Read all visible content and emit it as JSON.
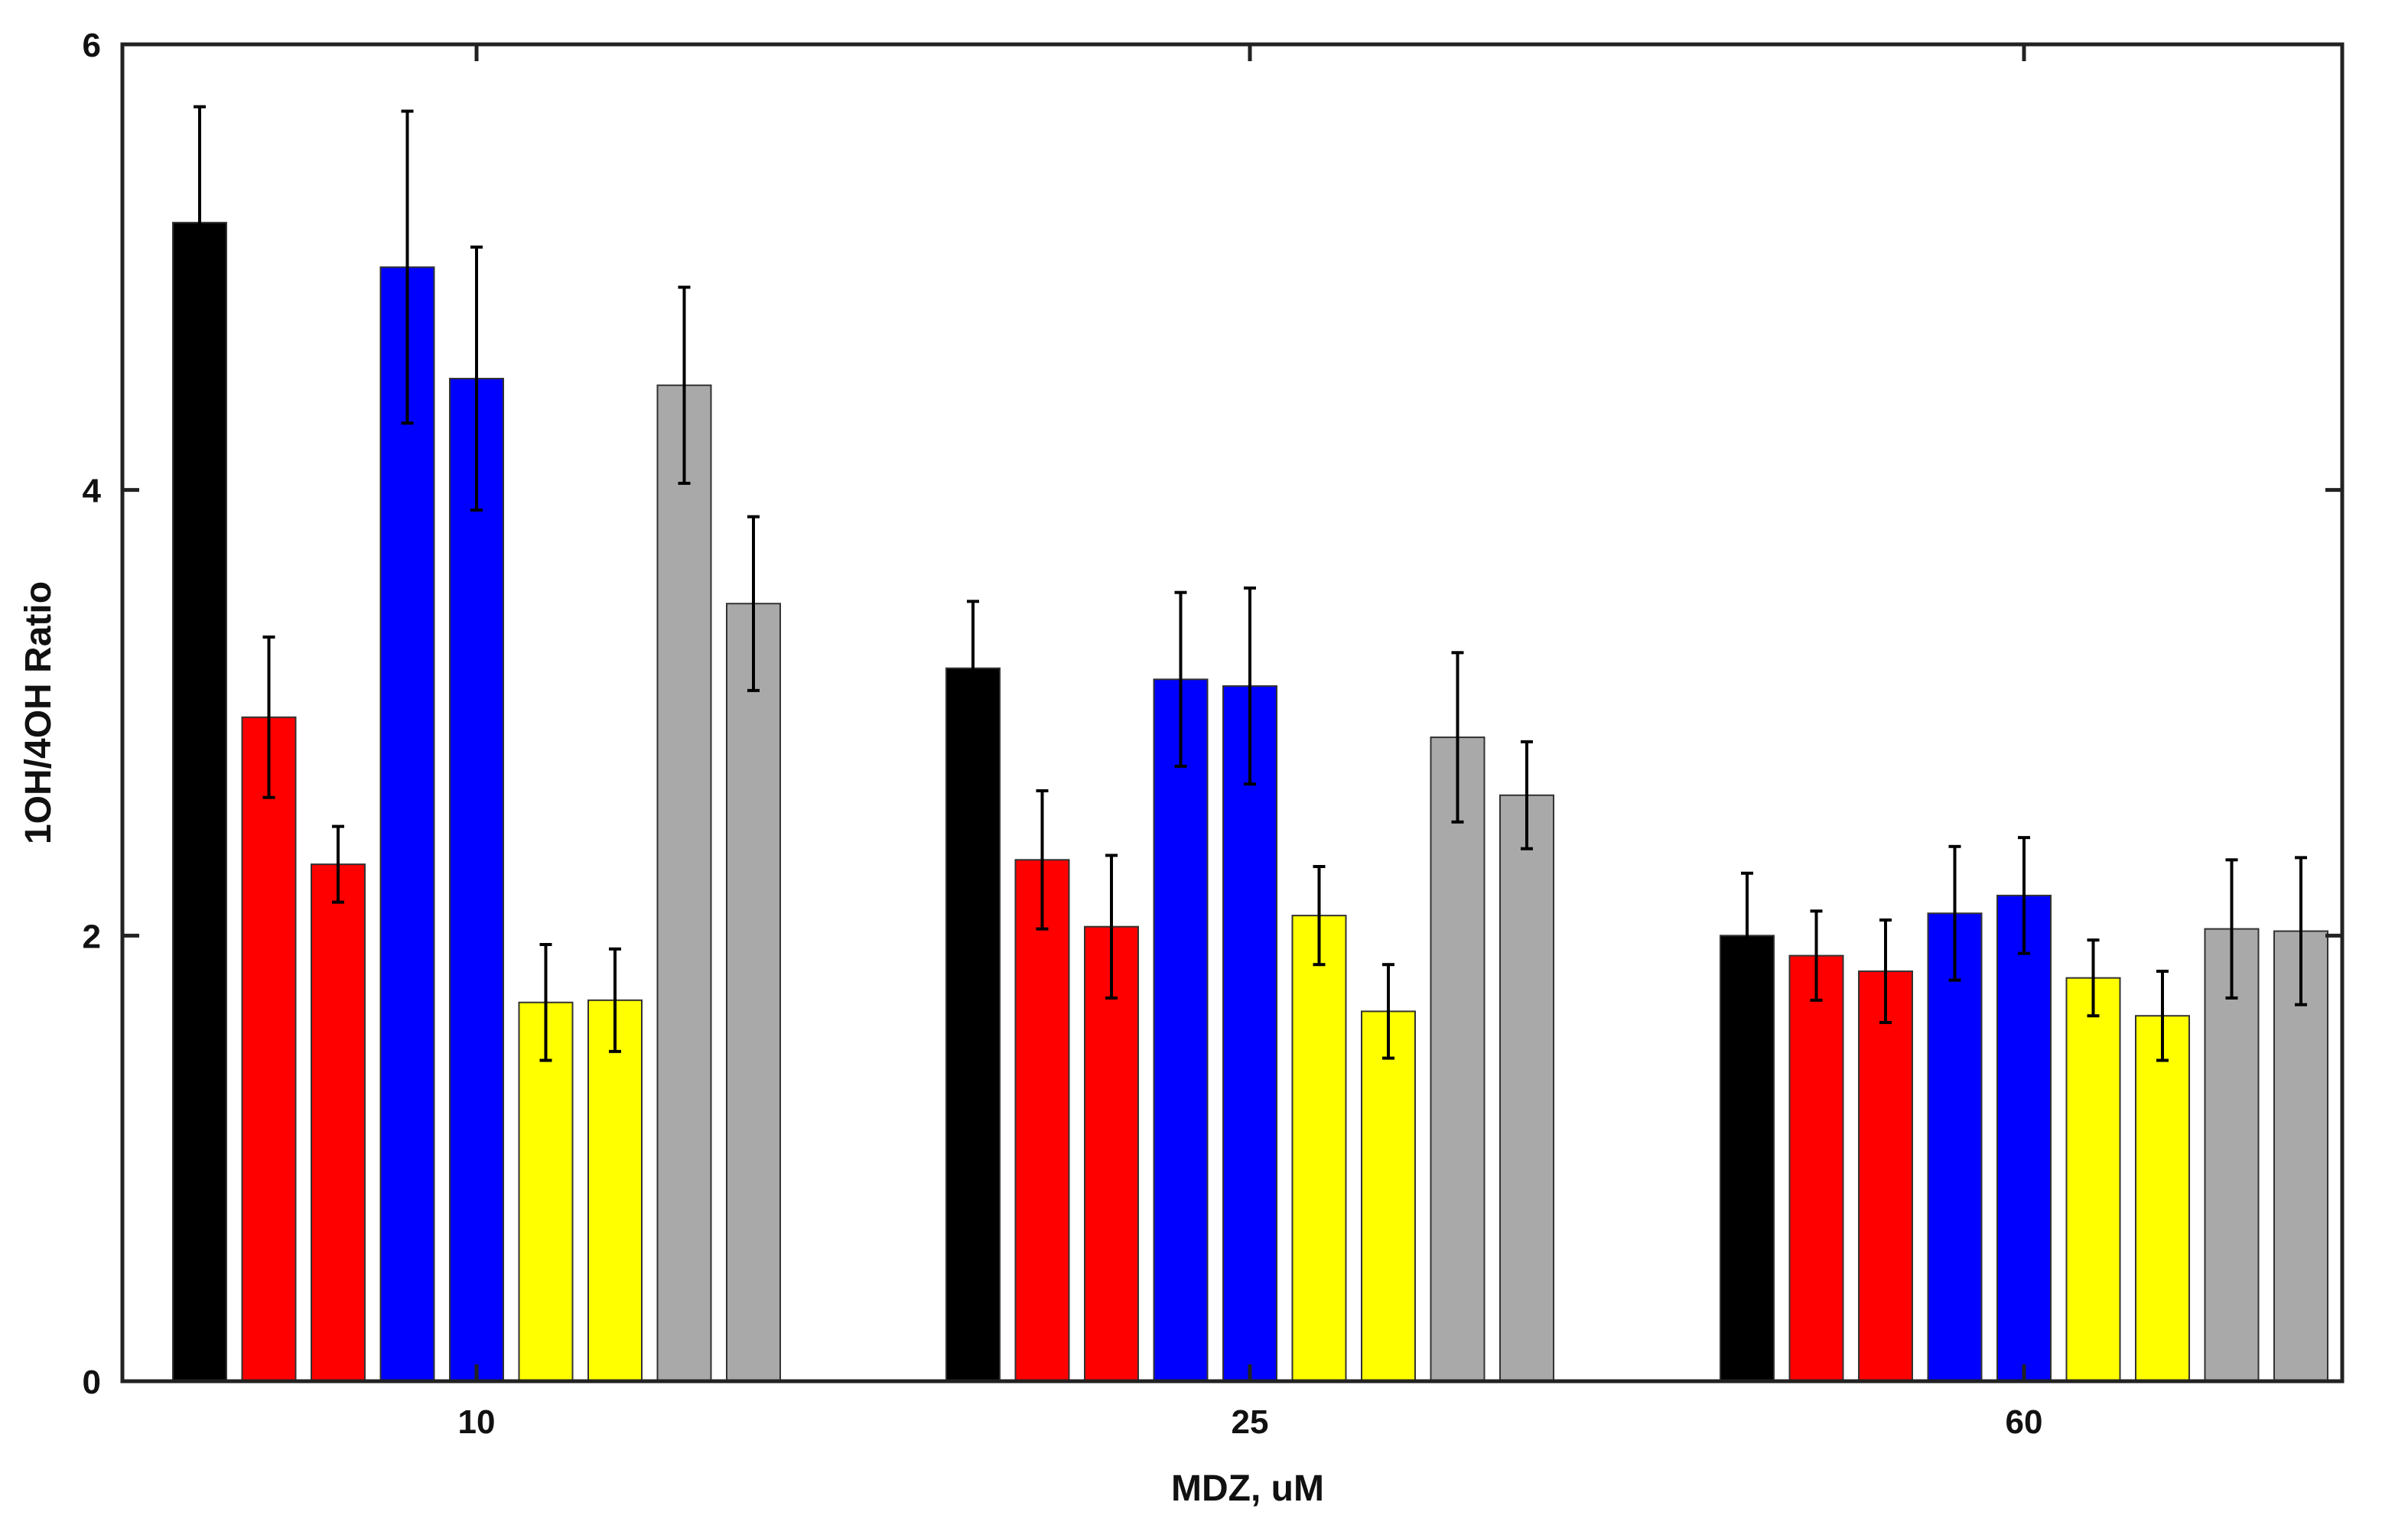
{
  "chart_data": {
    "type": "bar",
    "title": "",
    "xlabel": "MDZ, uM",
    "ylabel": "1OH/4OH Ratio",
    "ylim": [
      0,
      6
    ],
    "yticks": [
      "0",
      "2",
      "4",
      "6"
    ],
    "grid": false,
    "legend": "none",
    "categories": [
      "10",
      "25",
      "60"
    ],
    "series": [
      {
        "name": "black",
        "color": "#000000",
        "values": [
          5.2,
          3.2,
          2.0
        ],
        "errors": [
          0.52,
          0.3,
          0.28
        ]
      },
      {
        "name": "red 1",
        "color": "#ff0000",
        "values": [
          2.98,
          2.34,
          1.91
        ],
        "errors": [
          0.36,
          0.31,
          0.2
        ]
      },
      {
        "name": "red 2",
        "color": "#ff0000",
        "values": [
          2.32,
          2.04,
          1.84
        ],
        "errors": [
          0.17,
          0.32,
          0.23
        ]
      },
      {
        "name": "blue 1",
        "color": "#0000ff",
        "values": [
          5.0,
          3.15,
          2.1
        ],
        "errors": [
          0.7,
          0.39,
          0.3
        ]
      },
      {
        "name": "blue 2",
        "color": "#0000ff",
        "values": [
          4.5,
          3.12,
          2.18
        ],
        "errors": [
          0.59,
          0.44,
          0.26
        ]
      },
      {
        "name": "yellow 1",
        "color": "#ffff00",
        "values": [
          1.7,
          2.09,
          1.81
        ],
        "errors": [
          0.26,
          0.22,
          0.17
        ]
      },
      {
        "name": "yellow 2",
        "color": "#ffff00",
        "values": [
          1.71,
          1.66,
          1.64
        ],
        "errors": [
          0.23,
          0.21,
          0.2
        ]
      },
      {
        "name": "gray 1",
        "color": "#a9a9a9",
        "values": [
          4.47,
          2.89,
          2.03
        ],
        "errors": [
          0.44,
          0.38,
          0.31
        ]
      },
      {
        "name": "gray 2",
        "color": "#a9a9a9",
        "values": [
          3.49,
          2.63,
          2.02
        ],
        "errors": [
          0.39,
          0.24,
          0.33
        ]
      }
    ]
  }
}
